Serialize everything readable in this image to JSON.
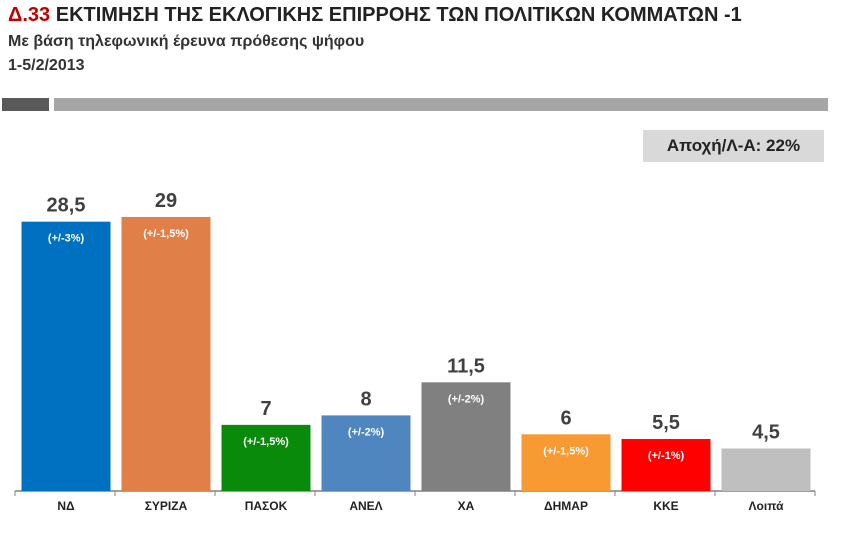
{
  "header": {
    "code": "Δ.33",
    "title": "ΕΚΤΙΜΗΣΗ ΤΗΣ ΕΚΛΟΓΙΚΗΣ ΕΠΙΡΡΟΗΣ ΤΩΝ ΠΟΛΙΤΙΚΩΝ ΚΟΜΜΑΤΩΝ -1",
    "subtitle": "Με βάση τηλεφωνική έρευνα πρόθεσης ψήφου",
    "date": "1-5/2/2013"
  },
  "abstention_label": "Αποχή/Λ-Α: 22%",
  "chart_data": {
    "type": "bar",
    "title": "ΕΚΤΙΜΗΣΗ ΤΗΣ ΕΚΛΟΓΙΚΗΣ ΕΠΙΡΡΟΗΣ ΤΩΝ ΠΟΛΙΤΙΚΩΝ ΚΟΜΜΑΤΩΝ -1",
    "xlabel": "",
    "ylabel": "",
    "ylim": [
      0,
      30
    ],
    "grid": false,
    "categories": [
      "ΝΔ",
      "ΣΥΡΙΖΑ",
      "ΠΑΣΟΚ",
      "ΑΝΕΛ",
      "ΧΑ",
      "ΔΗΜΑΡ",
      "ΚΚΕ",
      "Λοιπά"
    ],
    "values": [
      28.5,
      29,
      7,
      8,
      11.5,
      6,
      5.5,
      4.5
    ],
    "value_labels": [
      "28,5",
      "29",
      "7",
      "8",
      "11,5",
      "6",
      "5,5",
      "4,5"
    ],
    "margins": [
      "(+/-3%)",
      "(+/-1,5%)",
      "(+/-1,5%)",
      "(+/-2%)",
      "(+/-2%)",
      "(+/-1,5%)",
      "(+/-1%)",
      ""
    ],
    "colors": [
      "#0070c0",
      "#e07f47",
      "#0a8a0a",
      "#4f86c0",
      "#808080",
      "#f79a32",
      "#ff0000",
      "#bfbfbf"
    ]
  }
}
